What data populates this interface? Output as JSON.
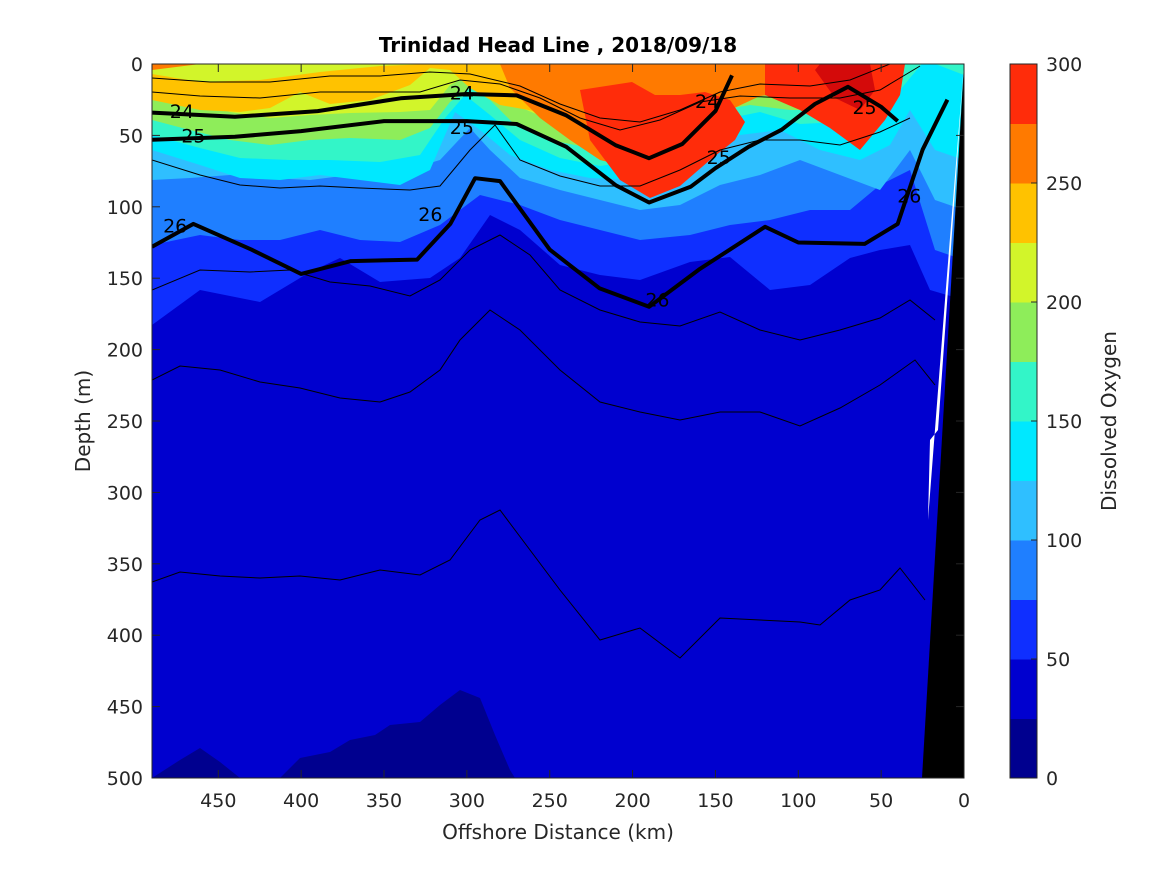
{
  "chart_data": {
    "type": "heatmap",
    "title": "Trinidad Head Line , 2018/09/18",
    "xlabel": "Offshore Distance (km)",
    "ylabel": "Depth (m)",
    "xlim": [
      490,
      0
    ],
    "ylim": [
      0,
      500
    ],
    "xticks": [
      450,
      400,
      350,
      300,
      250,
      200,
      150,
      100,
      50,
      0
    ],
    "yticks": [
      0,
      50,
      100,
      150,
      200,
      250,
      300,
      350,
      400,
      450,
      500
    ],
    "colorbar": {
      "label": "Dissolved Oxygen",
      "ticks": [
        0,
        50,
        100,
        150,
        200,
        250,
        300
      ],
      "levels": [
        0,
        25,
        50,
        75,
        100,
        125,
        150,
        175,
        200,
        225,
        250,
        275,
        300
      ],
      "colors": [
        "#00008f",
        "#0000cf",
        "#0f2fff",
        "#1f7fff",
        "#2fbfff",
        "#00e8ff",
        "#33f5c8",
        "#8eed5a",
        "#d2f52a",
        "#ffc200",
        "#ff7a00",
        "#ff2c0a"
      ]
    },
    "isopycnals": [
      {
        "level": "24",
        "x": [
          490,
          440,
          390,
          340,
          300,
          270,
          240,
          210,
          190,
          170,
          150,
          140
        ],
        "y": [
          34,
          37,
          33,
          24,
          21,
          22,
          36,
          57,
          66,
          56,
          33,
          8
        ]
      },
      {
        "level": "25",
        "x": [
          490,
          440,
          400,
          350,
          300,
          270,
          240,
          210,
          190,
          165,
          150,
          130,
          110,
          90,
          70,
          50,
          40
        ],
        "y": [
          53,
          51,
          47,
          40,
          40,
          42,
          58,
          85,
          97,
          86,
          73,
          58,
          46,
          28,
          16,
          30,
          40
        ]
      },
      {
        "level": "26",
        "x": [
          490,
          465,
          430,
          400,
          370,
          330,
          310,
          295,
          280,
          250,
          220,
          190,
          160,
          120,
          100,
          60,
          40,
          25,
          10
        ],
        "y": [
          128,
          112,
          130,
          147,
          138,
          137,
          112,
          80,
          82,
          130,
          157,
          170,
          144,
          114,
          125,
          126,
          112,
          60,
          25
        ]
      }
    ],
    "contour_labels": [
      {
        "text": "24",
        "x": 472,
        "y": 33
      },
      {
        "text": "24",
        "x": 303,
        "y": 20
      },
      {
        "text": "24",
        "x": 155,
        "y": 26
      },
      {
        "text": "25",
        "x": 465,
        "y": 50
      },
      {
        "text": "25",
        "x": 303,
        "y": 44
      },
      {
        "text": "25",
        "x": 148,
        "y": 65
      },
      {
        "text": "25",
        "x": 60,
        "y": 30
      },
      {
        "text": "26",
        "x": 476,
        "y": 113
      },
      {
        "text": "26",
        "x": 322,
        "y": 105
      },
      {
        "text": "26",
        "x": 185,
        "y": 165
      },
      {
        "text": "26",
        "x": 33,
        "y": 92
      }
    ],
    "grid": false,
    "legend": "none",
    "colorbar_position": "right"
  }
}
